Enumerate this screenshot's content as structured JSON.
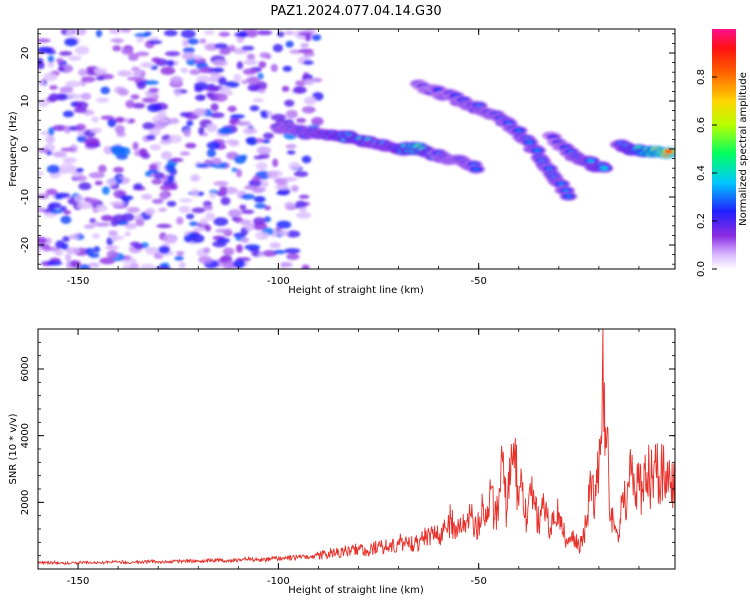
{
  "figure": {
    "title": "PAZ1.2024.077.04.14.G30"
  },
  "chart_data": [
    {
      "type": "heatmap",
      "title": "PAZ1.2024.077.04.14.G30",
      "xlabel": "Height of straight line (km)",
      "ylabel": "Frequency (Hz)",
      "xlim": [
        -160,
        -1
      ],
      "ylim": [
        -25,
        25
      ],
      "xticks": [
        -150,
        -100,
        -50
      ],
      "xtick_labels": [
        "-150",
        "-100",
        "-50"
      ],
      "yticks": [
        -20,
        -10,
        0,
        10,
        20
      ],
      "ytick_labels": [
        "-20",
        "-10",
        "0",
        "10",
        "20"
      ],
      "colorbar": {
        "label": "Normalized spectral amplitude",
        "range": [
          0,
          1
        ],
        "ticks": [
          0.0,
          0.2,
          0.4,
          0.6,
          0.8
        ],
        "tick_labels": [
          "0.0",
          "0.2",
          "0.4",
          "0.6",
          "0.8"
        ],
        "colormap": "gist_rainbow_r with white low end"
      },
      "noise_region": {
        "x": [
          -160,
          -92
        ],
        "y": [
          -25,
          25
        ],
        "amplitude": [
          0.05,
          0.3
        ]
      },
      "ridges": [
        {
          "name": "",
          "points": [
            {
              "x": -100,
              "y": 4.5,
              "v": 0.3
            },
            {
              "x": -95,
              "y": 3.7,
              "v": 0.32
            },
            {
              "x": -90,
              "y": 3.0,
              "v": 0.35
            },
            {
              "x": -85,
              "y": 2.8,
              "v": 0.4
            },
            {
              "x": -80,
              "y": 2.0,
              "v": 0.45
            },
            {
              "x": -75,
              "y": 1.0,
              "v": 0.35
            },
            {
              "x": -70,
              "y": 0.0,
              "v": 0.38
            },
            {
              "x": -65,
              "y": 0.2,
              "v": 0.55
            },
            {
              "x": -60,
              "y": -1.5,
              "v": 0.3
            },
            {
              "x": -55,
              "y": -2.5,
              "v": 0.3
            },
            {
              "x": -50,
              "y": -4.0,
              "v": 0.3
            }
          ]
        },
        {
          "name": "",
          "points": [
            {
              "x": -65,
              "y": 13.0,
              "v": 0.25
            },
            {
              "x": -57,
              "y": 11.0,
              "v": 0.27
            },
            {
              "x": -50,
              "y": 8.5,
              "v": 0.3
            },
            {
              "x": -45,
              "y": 6.5,
              "v": 0.3
            },
            {
              "x": -40,
              "y": 3.5,
              "v": 0.3
            },
            {
              "x": -36,
              "y": 0.0,
              "v": 0.32
            },
            {
              "x": -33,
              "y": -3.5,
              "v": 0.3
            },
            {
              "x": -30,
              "y": -7.0,
              "v": 0.32
            },
            {
              "x": -27,
              "y": -10.5,
              "v": 0.3
            }
          ]
        },
        {
          "name": "",
          "points": [
            {
              "x": -32,
              "y": 2.5,
              "v": 0.22
            },
            {
              "x": -27,
              "y": -1.0,
              "v": 0.3
            },
            {
              "x": -22,
              "y": -3.0,
              "v": 0.35
            },
            {
              "x": -18,
              "y": -4.5,
              "v": 0.4
            }
          ]
        },
        {
          "name": "",
          "points": [
            {
              "x": -15,
              "y": 1.0,
              "v": 0.3
            },
            {
              "x": -10,
              "y": -0.5,
              "v": 0.5
            },
            {
              "x": -5,
              "y": -0.8,
              "v": 0.85
            },
            {
              "x": -2,
              "y": -0.8,
              "v": 0.95
            }
          ]
        }
      ]
    },
    {
      "type": "line",
      "xlabel": "Height of straight line (km)",
      "ylabel": "SNR (10 * v/v)",
      "xlim": [
        -160,
        -1
      ],
      "ylim": [
        0,
        7200
      ],
      "xticks": [
        -150,
        -100,
        -50
      ],
      "xtick_labels": [
        "-150",
        "-100",
        "-50"
      ],
      "yticks": [
        2000,
        4000,
        6000
      ],
      "ytick_labels": [
        "2000",
        "4000",
        "6000"
      ],
      "color": "#e8302a",
      "series": [
        {
          "name": "",
          "x": [
            -160,
            -156,
            -152,
            -148,
            -144,
            -140,
            -136,
            -132,
            -128,
            -124,
            -120,
            -116,
            -112,
            -108,
            -104,
            -100,
            -96,
            -92,
            -88,
            -85,
            -82,
            -80,
            -78,
            -76,
            -74,
            -72,
            -70,
            -68,
            -66,
            -64,
            -62,
            -60,
            -58,
            -57,
            -56,
            -55,
            -54,
            -53,
            -52,
            -51,
            -50,
            -49,
            -48,
            -47,
            -46,
            -45,
            -44,
            -43,
            -42,
            -41,
            -40,
            -39,
            -38,
            -37,
            -36,
            -35,
            -34,
            -33,
            -32,
            -31,
            -30,
            -29,
            -28,
            -27,
            -26,
            -25,
            -24,
            -23,
            -22,
            -21,
            -20,
            -19.5,
            -19,
            -18.5,
            -18,
            -17.5,
            -17,
            -16,
            -15,
            -14,
            -13,
            -12,
            -11,
            -10,
            -9,
            -8,
            -7,
            -6,
            -5,
            -4,
            -3,
            -2,
            -1
          ],
          "y": [
            180,
            200,
            170,
            210,
            190,
            220,
            200,
            230,
            210,
            240,
            230,
            260,
            250,
            290,
            270,
            320,
            340,
            380,
            450,
            520,
            560,
            600,
            540,
            620,
            700,
            650,
            780,
            820,
            740,
            900,
            1050,
            960,
            1200,
            1500,
            1100,
            1300,
            1250,
            1450,
            1600,
            1200,
            1350,
            1900,
            1400,
            2400,
            1500,
            2000,
            3200,
            1700,
            2800,
            3500,
            1900,
            2600,
            1500,
            2200,
            2000,
            1300,
            1800,
            1600,
            1200,
            1400,
            1700,
            1100,
            900,
            800,
            1000,
            700,
            900,
            1500,
            2400,
            2000,
            3000,
            4000,
            7200,
            3400,
            4100,
            2500,
            1500,
            1300,
            1000,
            2300,
            1900,
            2800,
            2200,
            2600,
            2400,
            2900,
            2700,
            3200,
            2800,
            3000,
            2900,
            2600,
            3100
          ]
        }
      ]
    }
  ]
}
